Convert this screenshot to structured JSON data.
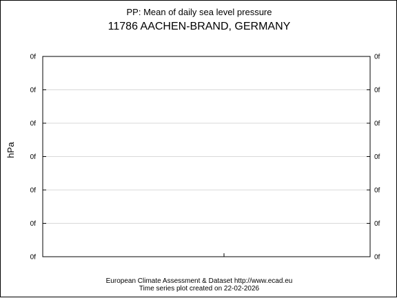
{
  "chart_data": {
    "type": "line",
    "title": "PP: Mean of daily sea level pressure",
    "subtitle": "11786 AACHEN-BRAND, GERMANY",
    "ylabel": "hPa",
    "xlabel": "",
    "y_tick_labels": [
      "0f",
      "0f",
      "0f",
      "0f",
      "0f",
      "0f",
      "0f"
    ],
    "series": [],
    "grid": true,
    "legend": "none",
    "footer": {
      "line1": "European Climate Assessment & Dataset  http://www.ecad.eu",
      "line2": "Time series plot created on 22-02-2026"
    }
  }
}
